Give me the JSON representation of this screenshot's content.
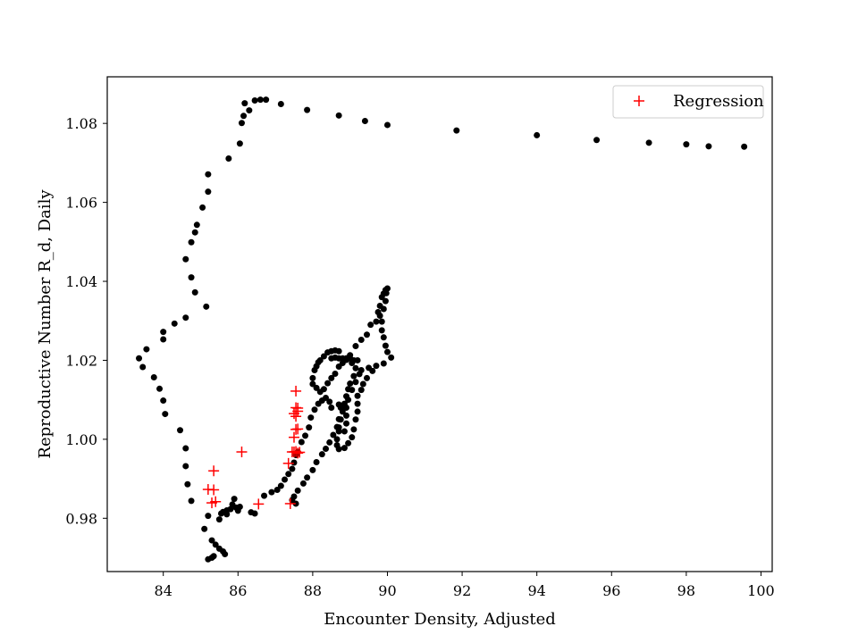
{
  "chart_data": {
    "type": "scatter",
    "xlabel": "Encounter Density, Adjusted",
    "ylabel": "Reproductive Number R_d, Daily",
    "xlim": [
      82.5,
      100.3
    ],
    "ylim": [
      0.9665,
      1.0918
    ],
    "x_ticks": [
      84,
      86,
      88,
      90,
      92,
      94,
      96,
      98,
      100
    ],
    "x_tick_labels": [
      "84",
      "86",
      "88",
      "90",
      "92",
      "94",
      "96",
      "98",
      "100"
    ],
    "y_ticks": [
      0.98,
      1.0,
      1.02,
      1.04,
      1.06,
      1.08
    ],
    "y_tick_labels": [
      "0.98",
      "1.00",
      "1.02",
      "1.04",
      "1.06",
      "1.08"
    ],
    "grid": false,
    "legend": {
      "position": "top-right",
      "entries": [
        "Regression"
      ]
    },
    "series": [
      {
        "marker": "circle",
        "color": "#000000",
        "points": [
          [
            99.55,
            1.0741
          ],
          [
            98.6,
            1.0742
          ],
          [
            98.0,
            1.0747
          ],
          [
            97.0,
            1.0751
          ],
          [
            95.6,
            1.0758
          ],
          [
            94.0,
            1.077
          ],
          [
            91.85,
            1.0782
          ],
          [
            90.0,
            1.0796
          ],
          [
            89.4,
            1.0806
          ],
          [
            88.7,
            1.082
          ],
          [
            87.85,
            1.0834
          ],
          [
            87.15,
            1.0849
          ],
          [
            86.75,
            1.086
          ],
          [
            86.6,
            1.086
          ],
          [
            86.45,
            1.0858
          ],
          [
            86.3,
            1.0833
          ],
          [
            86.18,
            1.0851
          ],
          [
            86.15,
            1.0819
          ],
          [
            86.1,
            1.0801
          ],
          [
            86.05,
            1.0749
          ],
          [
            85.75,
            1.0711
          ],
          [
            85.2,
            1.0671
          ],
          [
            85.2,
            1.0627
          ],
          [
            85.05,
            1.0587
          ],
          [
            84.9,
            1.0543
          ],
          [
            84.85,
            1.0524
          ],
          [
            84.75,
            1.0499
          ],
          [
            84.6,
            1.0456
          ],
          [
            84.75,
            1.041
          ],
          [
            84.85,
            1.0372
          ],
          [
            85.15,
            1.0336
          ],
          [
            84.6,
            1.0308
          ],
          [
            84.3,
            1.0293
          ],
          [
            84.0,
            1.0272
          ],
          [
            84.0,
            1.0253
          ],
          [
            83.55,
            1.0228
          ],
          [
            83.35,
            1.0205
          ],
          [
            83.45,
            1.0183
          ],
          [
            83.75,
            1.0157
          ],
          [
            83.9,
            1.0128
          ],
          [
            84.0,
            1.0098
          ],
          [
            84.05,
            1.0064
          ],
          [
            84.45,
            1.0023
          ],
          [
            84.6,
            0.9977
          ],
          [
            84.6,
            0.9932
          ],
          [
            84.65,
            0.9886
          ],
          [
            84.75,
            0.9844
          ],
          [
            85.1,
            0.9773
          ],
          [
            85.2,
            0.9806
          ],
          [
            85.2,
            0.9696
          ],
          [
            85.3,
            0.97
          ],
          [
            85.3,
            0.9744
          ],
          [
            85.35,
            0.9704
          ],
          [
            85.4,
            0.9733
          ],
          [
            85.5,
            0.9723
          ],
          [
            85.6,
            0.9716
          ],
          [
            85.65,
            0.9709
          ],
          [
            85.5,
            0.9797
          ],
          [
            85.55,
            0.9812
          ],
          [
            85.6,
            0.9816
          ],
          [
            85.7,
            0.981
          ],
          [
            85.7,
            0.982
          ],
          [
            85.8,
            0.9823
          ],
          [
            85.85,
            0.9835
          ],
          [
            85.9,
            0.9849
          ],
          [
            85.95,
            0.9827
          ],
          [
            86.0,
            0.9819
          ],
          [
            86.05,
            0.9829
          ],
          [
            86.35,
            0.9815
          ],
          [
            86.45,
            0.9812
          ],
          [
            86.7,
            0.9857
          ],
          [
            86.9,
            0.9866
          ],
          [
            87.05,
            0.9872
          ],
          [
            87.15,
            0.9882
          ],
          [
            87.25,
            0.9898
          ],
          [
            87.35,
            0.9912
          ],
          [
            87.45,
            0.9925
          ],
          [
            87.5,
            0.9941
          ],
          [
            87.55,
            0.996
          ],
          [
            87.6,
            0.9968
          ],
          [
            87.7,
            0.9993
          ],
          [
            87.8,
            1.0009
          ],
          [
            87.9,
            1.003
          ],
          [
            87.95,
            1.0055
          ],
          [
            88.05,
            1.0075
          ],
          [
            88.15,
            1.009
          ],
          [
            88.25,
            1.0098
          ],
          [
            88.3,
            1.0127
          ],
          [
            88.4,
            1.0142
          ],
          [
            88.5,
            1.0155
          ],
          [
            88.6,
            1.0166
          ],
          [
            88.7,
            1.0184
          ],
          [
            88.8,
            1.0193
          ],
          [
            88.9,
            1.0201
          ],
          [
            89.0,
            1.0213
          ],
          [
            89.15,
            1.0236
          ],
          [
            89.3,
            1.0252
          ],
          [
            89.45,
            1.0265
          ],
          [
            89.55,
            1.029
          ],
          [
            89.7,
            1.0298
          ],
          [
            89.8,
            1.0313
          ],
          [
            89.9,
            1.033
          ],
          [
            89.95,
            1.035
          ],
          [
            89.97,
            1.037
          ],
          [
            90.0,
            1.0382
          ],
          [
            89.95,
            1.0378
          ],
          [
            89.9,
            1.0369
          ],
          [
            89.85,
            1.036
          ],
          [
            89.8,
            1.0338
          ],
          [
            89.75,
            1.0322
          ],
          [
            89.85,
            1.0298
          ],
          [
            89.85,
            1.0276
          ],
          [
            89.9,
            1.0258
          ],
          [
            89.95,
            1.0237
          ],
          [
            90.0,
            1.0221
          ],
          [
            90.1,
            1.0207
          ],
          [
            89.9,
            1.0192
          ],
          [
            89.7,
            1.0186
          ],
          [
            89.5,
            1.0181
          ],
          [
            89.3,
            1.0175
          ],
          [
            89.1,
            1.016
          ],
          [
            89.0,
            1.0141
          ],
          [
            88.95,
            1.0127
          ],
          [
            88.9,
            1.0109
          ],
          [
            88.85,
            1.009
          ],
          [
            88.8,
            1.007
          ],
          [
            88.7,
            1.0051
          ],
          [
            88.65,
            1.0031
          ],
          [
            88.55,
            1.0011
          ],
          [
            88.45,
            0.9992
          ],
          [
            88.35,
            0.9976
          ],
          [
            88.25,
            0.9962
          ],
          [
            88.1,
            0.9942
          ],
          [
            88.0,
            0.9922
          ],
          [
            87.85,
            0.9903
          ],
          [
            87.75,
            0.9888
          ],
          [
            87.6,
            0.987
          ],
          [
            87.5,
            0.9855
          ],
          [
            87.45,
            0.9846
          ],
          [
            87.55,
            0.9837
          ],
          [
            88.5,
            1.0205
          ],
          [
            88.6,
            1.0207
          ],
          [
            88.7,
            1.0205
          ],
          [
            88.8,
            1.0205
          ],
          [
            88.9,
            1.0205
          ],
          [
            89.0,
            1.0205
          ],
          [
            89.1,
            1.02
          ],
          [
            89.2,
            1.02
          ],
          [
            88.7,
            1.0223
          ],
          [
            88.6,
            1.0225
          ],
          [
            88.5,
            1.0223
          ],
          [
            88.4,
            1.022
          ],
          [
            88.3,
            1.021
          ],
          [
            88.2,
            1.02
          ],
          [
            88.15,
            1.0195
          ],
          [
            88.1,
            1.0185
          ],
          [
            88.05,
            1.0175
          ],
          [
            88.0,
            1.0155
          ],
          [
            88.0,
            1.014
          ],
          [
            88.1,
            1.013
          ],
          [
            88.2,
            1.012
          ],
          [
            88.35,
            1.0105
          ],
          [
            88.45,
            1.0095
          ],
          [
            88.5,
            1.008
          ],
          [
            88.7,
            1.0088
          ],
          [
            88.75,
            1.008
          ],
          [
            88.75,
            1.005
          ],
          [
            88.7,
            1.003
          ],
          [
            88.7,
            1.002
          ],
          [
            88.65,
            1.0
          ],
          [
            88.65,
            0.9985
          ],
          [
            88.7,
            0.9975
          ],
          [
            88.85,
            0.9978
          ],
          [
            88.95,
            0.999
          ],
          [
            89.05,
            1.0005
          ],
          [
            89.1,
            1.0025
          ],
          [
            89.15,
            1.005
          ],
          [
            89.2,
            1.007
          ],
          [
            89.2,
            1.009
          ],
          [
            89.2,
            1.011
          ],
          [
            89.3,
            1.0125
          ],
          [
            89.35,
            1.014
          ],
          [
            89.45,
            1.0155
          ],
          [
            89.6,
            1.0173
          ],
          [
            88.95,
            1.0206
          ],
          [
            89.05,
            1.0193
          ],
          [
            89.15,
            1.018
          ],
          [
            89.25,
            1.0165
          ],
          [
            89.15,
            1.0145
          ],
          [
            89.05,
            1.0125
          ],
          [
            88.95,
            1.01
          ],
          [
            88.9,
            1.008
          ],
          [
            88.9,
            1.006
          ],
          [
            88.9,
            1.004
          ],
          [
            88.85,
            1.002
          ]
        ]
      },
      {
        "name": "Regression",
        "marker": "plus",
        "color": "#ff0000",
        "points": [
          [
            85.2,
            0.9873
          ],
          [
            85.35,
            0.9872
          ],
          [
            85.35,
            0.992
          ],
          [
            85.3,
            0.9839
          ],
          [
            85.4,
            0.9842
          ],
          [
            86.1,
            0.9968
          ],
          [
            86.55,
            0.9836
          ],
          [
            87.35,
            0.9939
          ],
          [
            87.45,
            0.9968
          ],
          [
            87.4,
            0.9837
          ],
          [
            87.5,
            0.9968
          ],
          [
            87.55,
            0.9969
          ],
          [
            87.6,
            0.9965
          ],
          [
            87.65,
            0.9967
          ],
          [
            87.5,
            1.0005
          ],
          [
            87.55,
            1.0025
          ],
          [
            87.6,
            1.0026
          ],
          [
            87.55,
            1.0058
          ],
          [
            87.5,
            1.0065
          ],
          [
            87.6,
            1.0071
          ],
          [
            87.55,
            1.008
          ],
          [
            87.6,
            1.0079
          ],
          [
            87.55,
            1.0122
          ]
        ]
      }
    ]
  }
}
